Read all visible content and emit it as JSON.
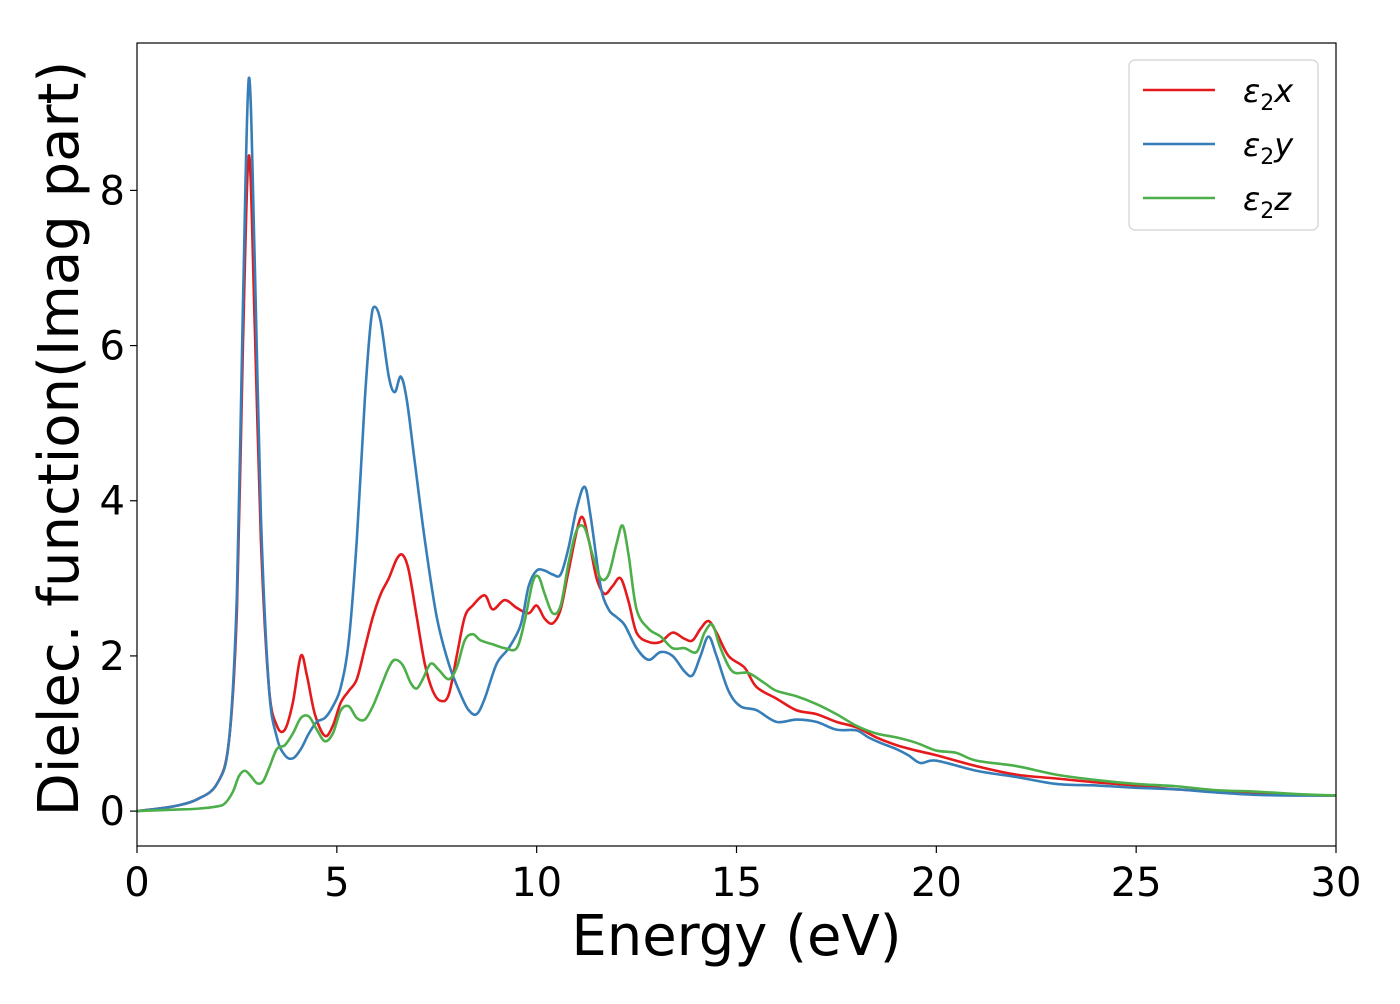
{
  "chart_data": {
    "type": "line",
    "xlabel": "Energy (eV)",
    "ylabel": "Dielec. function(Imag part)",
    "xlim": [
      0,
      30
    ],
    "ylim": [
      -0.45,
      9.9
    ],
    "xticks": [
      0,
      5,
      10,
      15,
      20,
      25,
      30
    ],
    "yticks": [
      0,
      2,
      4,
      6,
      8
    ],
    "legend_position": "top-right",
    "grid": false,
    "series": [
      {
        "name": "ε₂x",
        "legend_base": "ε",
        "legend_sub": "2",
        "legend_suffix": "x",
        "color": "#e41a1c",
        "points": [
          [
            0,
            0
          ],
          [
            0.5,
            0.03
          ],
          [
            1,
            0.07
          ],
          [
            1.5,
            0.15
          ],
          [
            2,
            0.35
          ],
          [
            2.3,
            0.9
          ],
          [
            2.5,
            2.6
          ],
          [
            2.65,
            6.0
          ],
          [
            2.8,
            8.45
          ],
          [
            2.95,
            6.2
          ],
          [
            3.1,
            3.5
          ],
          [
            3.3,
            1.6
          ],
          [
            3.5,
            1.1
          ],
          [
            3.7,
            1.05
          ],
          [
            3.9,
            1.4
          ],
          [
            4.1,
            2.0
          ],
          [
            4.25,
            1.75
          ],
          [
            4.45,
            1.25
          ],
          [
            4.7,
            0.97
          ],
          [
            4.9,
            1.1
          ],
          [
            5.1,
            1.4
          ],
          [
            5.3,
            1.55
          ],
          [
            5.5,
            1.7
          ],
          [
            5.7,
            2.1
          ],
          [
            5.9,
            2.5
          ],
          [
            6.1,
            2.8
          ],
          [
            6.3,
            3.0
          ],
          [
            6.5,
            3.25
          ],
          [
            6.65,
            3.3
          ],
          [
            6.8,
            3.1
          ],
          [
            7,
            2.5
          ],
          [
            7.2,
            1.9
          ],
          [
            7.4,
            1.55
          ],
          [
            7.6,
            1.42
          ],
          [
            7.8,
            1.5
          ],
          [
            8,
            2.0
          ],
          [
            8.2,
            2.5
          ],
          [
            8.4,
            2.65
          ],
          [
            8.7,
            2.78
          ],
          [
            8.9,
            2.6
          ],
          [
            9.2,
            2.72
          ],
          [
            9.5,
            2.62
          ],
          [
            9.8,
            2.55
          ],
          [
            10,
            2.65
          ],
          [
            10.2,
            2.48
          ],
          [
            10.4,
            2.42
          ],
          [
            10.6,
            2.6
          ],
          [
            10.8,
            3.1
          ],
          [
            11.1,
            3.78
          ],
          [
            11.3,
            3.5
          ],
          [
            11.5,
            3.0
          ],
          [
            11.7,
            2.8
          ],
          [
            11.9,
            2.9
          ],
          [
            12.1,
            3.0
          ],
          [
            12.3,
            2.7
          ],
          [
            12.5,
            2.3
          ],
          [
            12.8,
            2.18
          ],
          [
            13.1,
            2.18
          ],
          [
            13.4,
            2.3
          ],
          [
            13.7,
            2.22
          ],
          [
            13.9,
            2.2
          ],
          [
            14.1,
            2.35
          ],
          [
            14.3,
            2.45
          ],
          [
            14.5,
            2.3
          ],
          [
            14.8,
            2.0
          ],
          [
            15.2,
            1.85
          ],
          [
            15.5,
            1.6
          ],
          [
            16,
            1.45
          ],
          [
            16.5,
            1.3
          ],
          [
            17,
            1.25
          ],
          [
            17.5,
            1.15
          ],
          [
            18,
            1.08
          ],
          [
            18.5,
            0.95
          ],
          [
            19,
            0.85
          ],
          [
            19.5,
            0.78
          ],
          [
            20,
            0.72
          ],
          [
            21,
            0.58
          ],
          [
            22,
            0.47
          ],
          [
            23,
            0.42
          ],
          [
            24,
            0.37
          ],
          [
            25,
            0.33
          ],
          [
            26,
            0.28
          ],
          [
            27,
            0.26
          ],
          [
            28,
            0.24
          ],
          [
            29,
            0.21
          ],
          [
            30,
            0.2
          ]
        ]
      },
      {
        "name": "ε₂y",
        "legend_base": "ε",
        "legend_sub": "2",
        "legend_suffix": "y",
        "color": "#377eb8",
        "points": [
          [
            0,
            0
          ],
          [
            0.5,
            0.03
          ],
          [
            1,
            0.07
          ],
          [
            1.5,
            0.15
          ],
          [
            2,
            0.35
          ],
          [
            2.3,
            0.9
          ],
          [
            2.5,
            2.8
          ],
          [
            2.65,
            6.5
          ],
          [
            2.8,
            9.45
          ],
          [
            2.95,
            7.0
          ],
          [
            3.1,
            3.8
          ],
          [
            3.3,
            1.6
          ],
          [
            3.5,
            0.95
          ],
          [
            3.7,
            0.72
          ],
          [
            3.9,
            0.68
          ],
          [
            4.1,
            0.8
          ],
          [
            4.3,
            1.0
          ],
          [
            4.5,
            1.15
          ],
          [
            4.7,
            1.2
          ],
          [
            4.9,
            1.35
          ],
          [
            5.1,
            1.6
          ],
          [
            5.3,
            2.2
          ],
          [
            5.5,
            3.5
          ],
          [
            5.7,
            5.3
          ],
          [
            5.85,
            6.3
          ],
          [
            5.95,
            6.5
          ],
          [
            6.1,
            6.3
          ],
          [
            6.3,
            5.6
          ],
          [
            6.45,
            5.4
          ],
          [
            6.6,
            5.6
          ],
          [
            6.75,
            5.3
          ],
          [
            6.95,
            4.5
          ],
          [
            7.2,
            3.5
          ],
          [
            7.5,
            2.5
          ],
          [
            7.8,
            1.9
          ],
          [
            8.1,
            1.5
          ],
          [
            8.3,
            1.3
          ],
          [
            8.5,
            1.25
          ],
          [
            8.7,
            1.45
          ],
          [
            9,
            1.9
          ],
          [
            9.3,
            2.1
          ],
          [
            9.6,
            2.4
          ],
          [
            9.8,
            2.9
          ],
          [
            10,
            3.1
          ],
          [
            10.2,
            3.1
          ],
          [
            10.4,
            3.05
          ],
          [
            10.6,
            3.05
          ],
          [
            10.8,
            3.4
          ],
          [
            11,
            3.9
          ],
          [
            11.2,
            4.18
          ],
          [
            11.35,
            3.8
          ],
          [
            11.6,
            2.9
          ],
          [
            11.8,
            2.6
          ],
          [
            12,
            2.5
          ],
          [
            12.2,
            2.4
          ],
          [
            12.5,
            2.1
          ],
          [
            12.8,
            1.95
          ],
          [
            13.1,
            2.05
          ],
          [
            13.4,
            2.0
          ],
          [
            13.7,
            1.8
          ],
          [
            13.9,
            1.75
          ],
          [
            14.1,
            2.0
          ],
          [
            14.3,
            2.25
          ],
          [
            14.5,
            2.0
          ],
          [
            14.8,
            1.55
          ],
          [
            15.1,
            1.35
          ],
          [
            15.5,
            1.3
          ],
          [
            16,
            1.15
          ],
          [
            16.5,
            1.18
          ],
          [
            17,
            1.15
          ],
          [
            17.5,
            1.05
          ],
          [
            18,
            1.04
          ],
          [
            18.3,
            0.95
          ],
          [
            18.6,
            0.88
          ],
          [
            19,
            0.8
          ],
          [
            19.3,
            0.72
          ],
          [
            19.6,
            0.62
          ],
          [
            20,
            0.65
          ],
          [
            21,
            0.52
          ],
          [
            22,
            0.44
          ],
          [
            23,
            0.35
          ],
          [
            24,
            0.33
          ],
          [
            25,
            0.3
          ],
          [
            26,
            0.28
          ],
          [
            27,
            0.24
          ],
          [
            28,
            0.21
          ],
          [
            29,
            0.2
          ],
          [
            30,
            0.2
          ]
        ]
      },
      {
        "name": "ε₂z",
        "legend_base": "ε",
        "legend_sub": "2",
        "legend_suffix": "z",
        "color": "#4daf4a",
        "points": [
          [
            0,
            0
          ],
          [
            0.5,
            0.01
          ],
          [
            1,
            0.02
          ],
          [
            1.5,
            0.03
          ],
          [
            2,
            0.06
          ],
          [
            2.2,
            0.1
          ],
          [
            2.4,
            0.25
          ],
          [
            2.55,
            0.45
          ],
          [
            2.7,
            0.52
          ],
          [
            2.85,
            0.45
          ],
          [
            3.0,
            0.36
          ],
          [
            3.15,
            0.38
          ],
          [
            3.3,
            0.55
          ],
          [
            3.5,
            0.8
          ],
          [
            3.7,
            0.85
          ],
          [
            3.9,
            1.0
          ],
          [
            4.1,
            1.2
          ],
          [
            4.3,
            1.22
          ],
          [
            4.5,
            1.05
          ],
          [
            4.7,
            0.9
          ],
          [
            4.9,
            1.0
          ],
          [
            5.1,
            1.3
          ],
          [
            5.3,
            1.35
          ],
          [
            5.5,
            1.2
          ],
          [
            5.7,
            1.18
          ],
          [
            5.9,
            1.35
          ],
          [
            6.1,
            1.6
          ],
          [
            6.3,
            1.85
          ],
          [
            6.45,
            1.95
          ],
          [
            6.65,
            1.88
          ],
          [
            6.85,
            1.65
          ],
          [
            7.0,
            1.58
          ],
          [
            7.15,
            1.7
          ],
          [
            7.35,
            1.9
          ],
          [
            7.55,
            1.82
          ],
          [
            7.8,
            1.7
          ],
          [
            8.0,
            1.85
          ],
          [
            8.2,
            2.2
          ],
          [
            8.4,
            2.28
          ],
          [
            8.6,
            2.2
          ],
          [
            8.9,
            2.15
          ],
          [
            9.2,
            2.1
          ],
          [
            9.5,
            2.1
          ],
          [
            9.7,
            2.45
          ],
          [
            9.9,
            2.95
          ],
          [
            10.05,
            3.02
          ],
          [
            10.2,
            2.8
          ],
          [
            10.4,
            2.55
          ],
          [
            10.6,
            2.65
          ],
          [
            10.8,
            3.2
          ],
          [
            11,
            3.62
          ],
          [
            11.2,
            3.65
          ],
          [
            11.4,
            3.3
          ],
          [
            11.6,
            3.0
          ],
          [
            11.8,
            3.05
          ],
          [
            12,
            3.45
          ],
          [
            12.15,
            3.68
          ],
          [
            12.3,
            3.3
          ],
          [
            12.5,
            2.6
          ],
          [
            12.8,
            2.35
          ],
          [
            13.1,
            2.25
          ],
          [
            13.4,
            2.1
          ],
          [
            13.7,
            2.1
          ],
          [
            14.0,
            2.05
          ],
          [
            14.2,
            2.3
          ],
          [
            14.4,
            2.4
          ],
          [
            14.6,
            2.1
          ],
          [
            14.9,
            1.8
          ],
          [
            15.3,
            1.78
          ],
          [
            15.7,
            1.65
          ],
          [
            16.0,
            1.55
          ],
          [
            16.5,
            1.48
          ],
          [
            17,
            1.38
          ],
          [
            17.5,
            1.25
          ],
          [
            18,
            1.1
          ],
          [
            18.5,
            1.0
          ],
          [
            19,
            0.95
          ],
          [
            19.5,
            0.88
          ],
          [
            20,
            0.78
          ],
          [
            20.5,
            0.75
          ],
          [
            21,
            0.65
          ],
          [
            22,
            0.58
          ],
          [
            23,
            0.47
          ],
          [
            24,
            0.4
          ],
          [
            25,
            0.35
          ],
          [
            26,
            0.32
          ],
          [
            27,
            0.27
          ],
          [
            28,
            0.25
          ],
          [
            29,
            0.22
          ],
          [
            30,
            0.2
          ]
        ]
      }
    ]
  }
}
